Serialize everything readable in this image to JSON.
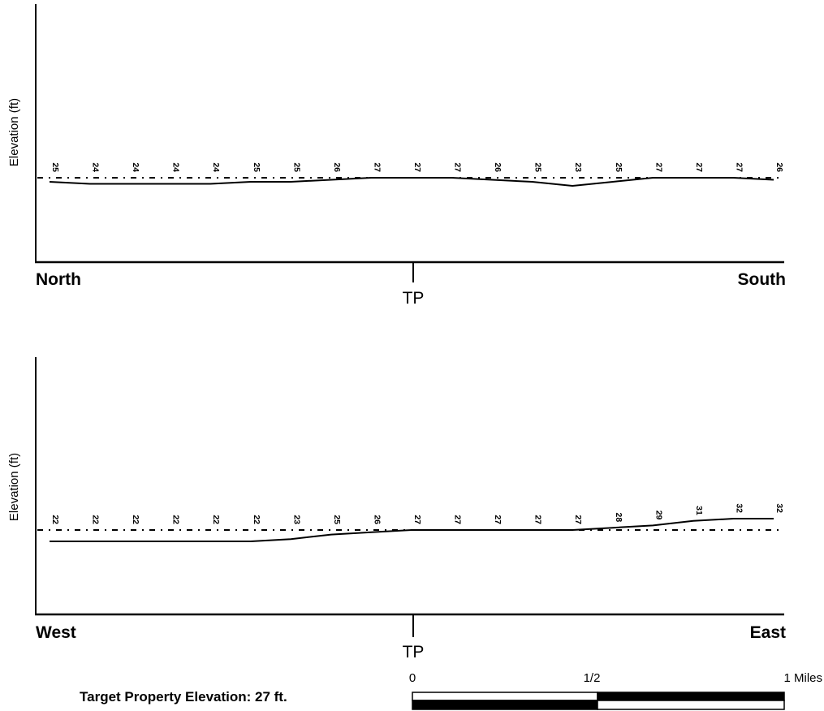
{
  "chart_data": [
    {
      "type": "line",
      "ylabel": "Elevation (ft)",
      "start_label": "North",
      "end_label": "South",
      "center_label": "TP",
      "values": [
        25,
        24,
        24,
        24,
        24,
        25,
        25,
        26,
        27,
        27,
        27,
        26,
        25,
        23,
        25,
        27,
        27,
        27,
        26
      ],
      "reference_value": 27,
      "reference_line_style": "dashed"
    },
    {
      "type": "line",
      "ylabel": "Elevation (ft)",
      "start_label": "West",
      "end_label": "East",
      "center_label": "TP",
      "values": [
        22,
        22,
        22,
        22,
        22,
        22,
        23,
        25,
        26,
        27,
        27,
        27,
        27,
        27,
        28,
        29,
        31,
        32,
        32
      ],
      "reference_value": 27,
      "reference_line_style": "dashed"
    }
  ],
  "scale_bar": {
    "labels": [
      "0",
      "1/2",
      "1 Miles"
    ]
  },
  "caption": "Target Property Elevation: 27 ft."
}
